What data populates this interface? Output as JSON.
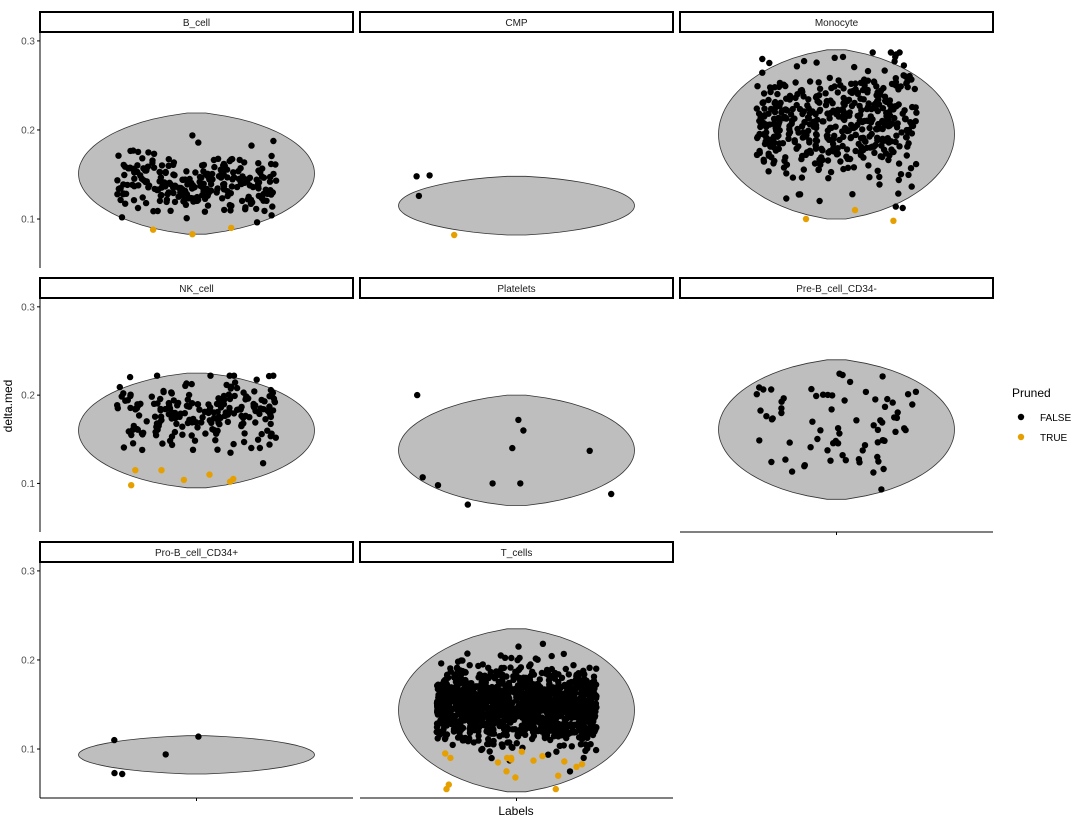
{
  "chart_data": {
    "type": "violin",
    "facet_by": "Labels",
    "facets": [
      {
        "label": "B_cell",
        "violin_range": [
          0.083,
          0.219
        ],
        "n_false": 260,
        "false_center": 0.14,
        "false_spread": 0.018,
        "true_points": [
          0.083,
          0.088,
          0.09
        ]
      },
      {
        "label": "CMP",
        "violin_range": [
          0.082,
          0.148
        ],
        "false_points": [
          0.148,
          0.126,
          0.149
        ],
        "true_points": [
          0.082
        ]
      },
      {
        "label": "Monocyte",
        "violin_range": [
          0.1,
          0.29
        ],
        "n_false": 480,
        "false_center": 0.205,
        "false_spread": 0.032,
        "true_points": [
          0.1,
          0.11,
          0.098
        ]
      },
      {
        "label": "NK_cell",
        "violin_range": [
          0.095,
          0.225
        ],
        "n_false": 210,
        "false_center": 0.18,
        "false_spread": 0.02,
        "true_points": [
          0.115,
          0.105,
          0.098,
          0.102,
          0.115,
          0.104,
          0.11
        ]
      },
      {
        "label": "Platelets",
        "violin_range": [
          0.075,
          0.2
        ],
        "false_points": [
          0.2,
          0.172,
          0.16,
          0.14,
          0.137,
          0.107,
          0.1,
          0.1,
          0.098,
          0.088,
          0.076
        ],
        "true_points": []
      },
      {
        "label": "Pre-B_cell_CD34-",
        "violin_range": [
          0.082,
          0.24
        ],
        "n_false": 75,
        "false_center": 0.16,
        "false_spread": 0.035,
        "true_points": []
      },
      {
        "label": "Pro-B_cell_CD34+",
        "violin_range": [
          0.072,
          0.115
        ],
        "false_points": [
          0.114,
          0.11,
          0.094,
          0.073,
          0.072
        ],
        "true_points": []
      },
      {
        "label": "T_cells",
        "violin_range": [
          0.052,
          0.235
        ],
        "n_false": 1300,
        "false_center": 0.15,
        "false_spread": 0.02,
        "true_points": [
          0.085,
          0.09,
          0.087,
          0.09,
          0.06,
          0.055,
          0.083,
          0.095,
          0.088,
          0.075,
          0.08,
          0.092,
          0.068,
          0.055,
          0.09,
          0.097,
          0.07,
          0.086
        ]
      }
    ],
    "y_ticks": [
      0.1,
      0.2,
      0.3
    ],
    "y_tick_labels": [
      "0.1",
      "0.2",
      "0.3"
    ],
    "ylim": [
      0.045,
      0.31
    ],
    "xlabel": "Labels",
    "ylabel": "delta.med",
    "legend": {
      "title": "Pruned",
      "position": "right",
      "entries": [
        {
          "label": "FALSE",
          "color": "#000000"
        },
        {
          "label": "TRUE",
          "color": "#E69F00"
        }
      ]
    },
    "grid": false,
    "colors": {
      "false": "#000000",
      "true": "#E69F00",
      "violin_fill": "#bebebe"
    }
  }
}
